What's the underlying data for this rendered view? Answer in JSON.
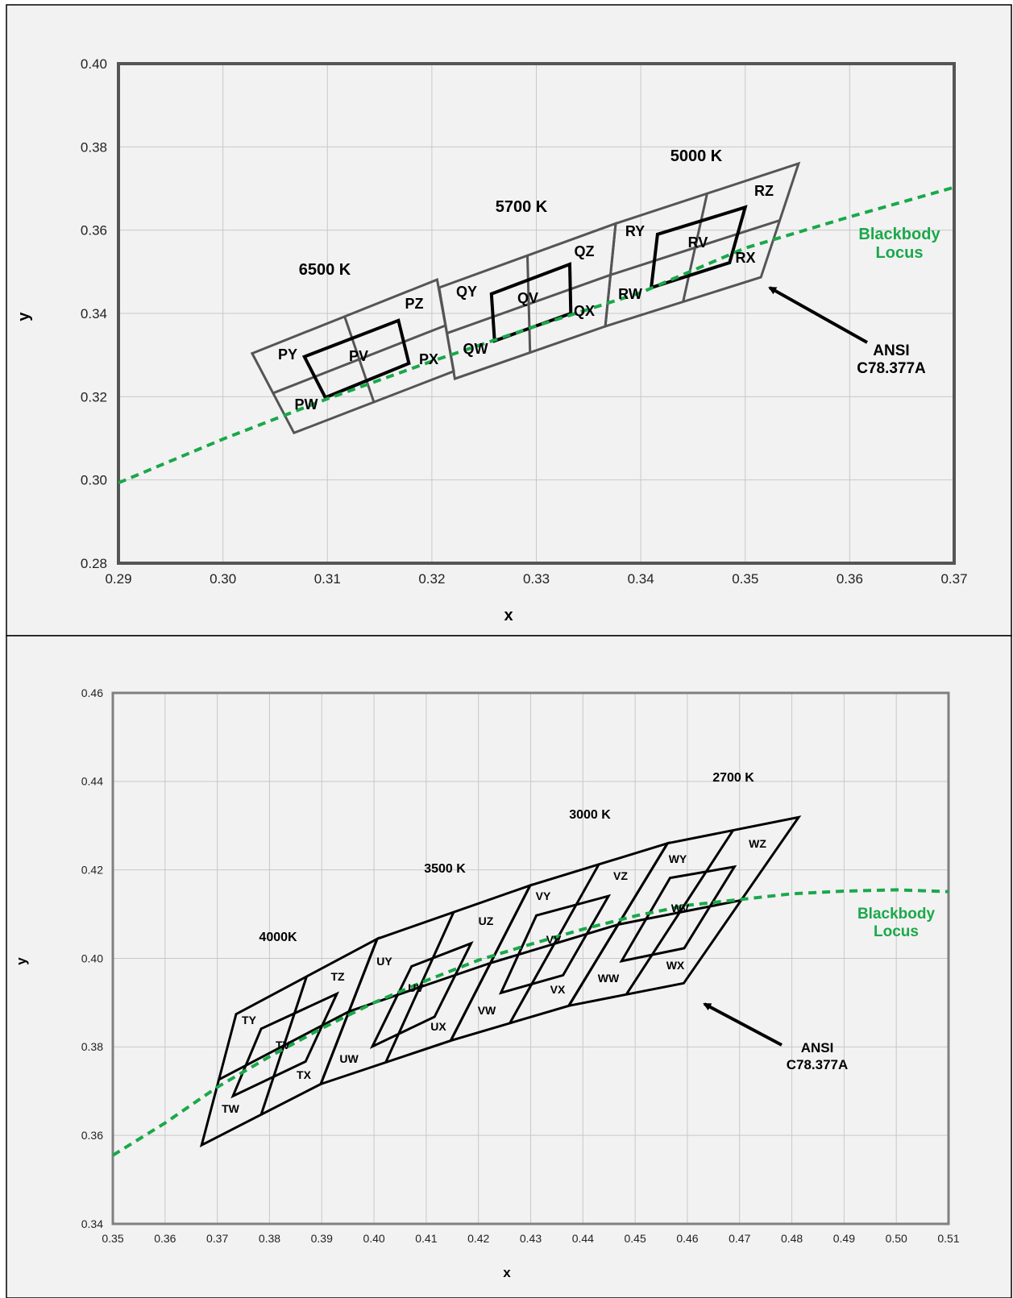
{
  "colors": {
    "locus": "#1aa84a",
    "quad": "#000000",
    "frame1": "#555555",
    "frame2": "#808080",
    "grid": "#c8c8c8",
    "background": "#f2f2f2"
  },
  "chart_data": [
    {
      "type": "scatter",
      "title": "",
      "xlabel": "x",
      "ylabel": "y",
      "xlim": [
        0.29,
        0.37
      ],
      "ylim": [
        0.28,
        0.4
      ],
      "x_ticks": [
        "0.29",
        "0.30",
        "0.31",
        "0.32",
        "0.33",
        "0.34",
        "0.35",
        "0.36",
        "0.37"
      ],
      "y_ticks": [
        "0.28",
        "0.30",
        "0.32",
        "0.34",
        "0.36",
        "0.38",
        "0.40"
      ],
      "grid": true,
      "locus": {
        "name": "Blackbody Locus",
        "x": [
          0.29,
          0.3,
          0.31,
          0.32,
          0.33,
          0.34,
          0.35,
          0.36,
          0.37
        ],
        "y": [
          0.2993,
          0.3098,
          0.3195,
          0.3285,
          0.337,
          0.345,
          0.3557,
          0.3632,
          0.3703
        ]
      },
      "quadrangles": [
        {
          "label": "ANSI C78.377A 6500 K",
          "points": [
            [
              0.3028,
              0.3304
            ],
            [
              0.3205,
              0.3481
            ],
            [
              0.3221,
              0.3261
            ],
            [
              0.3068,
              0.3113
            ]
          ]
        },
        {
          "label": "ANSI C78.377A 5700 K",
          "points": [
            [
              0.3207,
              0.3462
            ],
            [
              0.3376,
              0.3616
            ],
            [
              0.3366,
              0.3369
            ],
            [
              0.3222,
              0.3243
            ]
          ]
        },
        {
          "label": "ANSI C78.377A 5000 K",
          "points": [
            [
              0.3376,
              0.3616
            ],
            [
              0.3551,
              0.376
            ],
            [
              0.3515,
              0.3487
            ],
            [
              0.3366,
              0.3369
            ]
          ]
        },
        {
          "label": "PV",
          "points": [
            [
              0.3078,
              0.3296
            ],
            [
              0.3168,
              0.3383
            ],
            [
              0.3178,
              0.328
            ],
            [
              0.3098,
              0.3198
            ]
          ]
        },
        {
          "label": "QV",
          "points": [
            [
              0.3257,
              0.3447
            ],
            [
              0.3332,
              0.3518
            ],
            [
              0.3333,
              0.34
            ],
            [
              0.326,
              0.3334
            ]
          ]
        },
        {
          "label": "RV",
          "points": [
            [
              0.3416,
              0.359
            ],
            [
              0.35,
              0.3655
            ],
            [
              0.3485,
              0.3522
            ],
            [
              0.341,
              0.3462
            ]
          ]
        }
      ],
      "bin_labels": [
        "PY",
        "PV",
        "PZ",
        "PX",
        "PW",
        "QY",
        "QV",
        "QZ",
        "QX",
        "QW",
        "RY",
        "RV",
        "RZ",
        "RX",
        "RW"
      ],
      "cct_labels": [
        "6500 K",
        "5700 K",
        "5000 K"
      ],
      "locus_label": [
        "Blackbody",
        "Locus"
      ],
      "ansi_label": [
        "ANSI",
        "C78.377A"
      ]
    },
    {
      "type": "scatter",
      "title": "",
      "xlabel": "x",
      "ylabel": "y",
      "xlim": [
        0.35,
        0.51
      ],
      "ylim": [
        0.34,
        0.46
      ],
      "x_ticks": [
        "0.35",
        "0.36",
        "0.37",
        "0.38",
        "0.39",
        "0.40",
        "0.41",
        "0.42",
        "0.43",
        "0.44",
        "0.45",
        "0.46",
        "0.47",
        "0.48",
        "0.49",
        "0.50",
        "0.51"
      ],
      "y_ticks": [
        "0.34",
        "0.36",
        "0.38",
        "0.40",
        "0.42",
        "0.44",
        "0.46"
      ],
      "grid": true,
      "locus": {
        "name": "Blackbody Locus",
        "x": [
          0.35,
          0.36,
          0.37,
          0.38,
          0.39,
          0.4,
          0.41,
          0.42,
          0.43,
          0.44,
          0.45,
          0.46,
          0.47,
          0.48,
          0.49,
          0.5,
          0.51
        ],
        "y": [
          0.3555,
          0.3628,
          0.3709,
          0.3778,
          0.3842,
          0.39,
          0.395,
          0.3996,
          0.4032,
          0.4066,
          0.4096,
          0.412,
          0.4133,
          0.4146,
          0.4152,
          0.4155,
          0.4151
        ]
      },
      "quadrangles": [
        {
          "label": "ANSI C78.377A 4000 K",
          "points": [
            [
              0.3736,
              0.3874
            ],
            [
              0.4006,
              0.4044
            ],
            [
              0.3898,
              0.3716
            ],
            [
              0.367,
              0.3578
            ]
          ]
        },
        {
          "label": "ANSI C78.377A 3500 K",
          "points": [
            [
              0.4006,
              0.4044
            ],
            [
              0.4299,
              0.4165
            ],
            [
              0.4147,
              0.3814
            ],
            [
              0.3898,
              0.3716
            ]
          ]
        },
        {
          "label": "ANSI C78.377A 3000 K",
          "points": [
            [
              0.4299,
              0.4165
            ],
            [
              0.4562,
              0.426
            ],
            [
              0.4373,
              0.3893
            ],
            [
              0.4147,
              0.3814
            ]
          ]
        },
        {
          "label": "ANSI C78.377A 2700 K",
          "points": [
            [
              0.4562,
              0.426
            ],
            [
              0.4813,
              0.4319
            ],
            [
              0.4593,
              0.3944
            ],
            [
              0.4373,
              0.3893
            ]
          ]
        },
        {
          "label": "TV",
          "points": [
            [
              0.3784,
              0.3841
            ],
            [
              0.3929,
              0.392
            ],
            [
              0.3869,
              0.3767
            ],
            [
              0.373,
              0.3689
            ]
          ]
        },
        {
          "label": "UV",
          "points": [
            [
              0.4072,
              0.3982
            ],
            [
              0.4186,
              0.4034
            ],
            [
              0.4116,
              0.3868
            ],
            [
              0.3997,
              0.3801
            ]
          ]
        },
        {
          "label": "VV",
          "points": [
            [
              0.4311,
              0.4097
            ],
            [
              0.4449,
              0.4141
            ],
            [
              0.4362,
              0.3962
            ],
            [
              0.4243,
              0.3922
            ]
          ]
        },
        {
          "label": "WV",
          "points": [
            [
              0.4567,
              0.4182
            ],
            [
              0.469,
              0.4207
            ],
            [
              0.4594,
              0.4023
            ],
            [
              0.4474,
              0.3994
            ]
          ]
        }
      ],
      "bin_labels": [
        "TY",
        "TV",
        "TZ",
        "TX",
        "TW",
        "UY",
        "UV",
        "UZ",
        "UX",
        "UW",
        "VY",
        "VV",
        "VZ",
        "VX",
        "VW",
        "WY",
        "WV",
        "WZ",
        "WX",
        "WW"
      ],
      "cct_labels": [
        "4000K",
        "3500 K",
        "3000 K",
        "2700 K"
      ],
      "locus_label": [
        "Blackbody",
        "Locus"
      ],
      "ansi_label": [
        "ANSI",
        "C78.377A"
      ]
    }
  ]
}
